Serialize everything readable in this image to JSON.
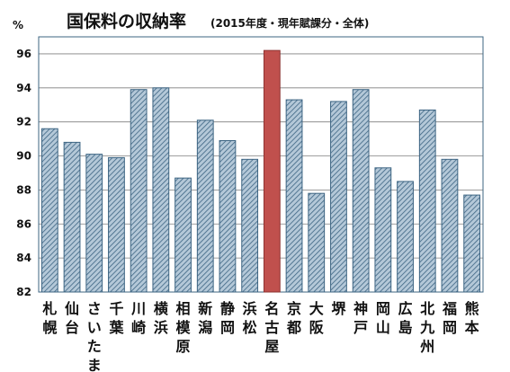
{
  "chart_data": {
    "type": "bar",
    "title": "国保料の収納率",
    "subtitle": "(2015年度・現年賦課分・全体)",
    "ylabel": "%",
    "ylim": [
      82,
      97
    ],
    "yticks": [
      82,
      84,
      86,
      88,
      90,
      92,
      94,
      96
    ],
    "grid": true,
    "categories": [
      "札幌",
      "仙台",
      "さいたま",
      "千葉",
      "川崎",
      "横浜",
      "相模原",
      "新潟",
      "静岡",
      "浜松",
      "名古屋",
      "京都",
      "大阪",
      "堺",
      "神戸",
      "岡山",
      "広島",
      "北九州",
      "福岡",
      "熊本"
    ],
    "values": [
      91.6,
      90.8,
      90.1,
      89.9,
      93.9,
      94.0,
      88.7,
      92.1,
      90.9,
      89.8,
      96.2,
      93.3,
      87.8,
      93.2,
      93.9,
      89.3,
      88.5,
      92.7,
      89.8,
      87.7
    ],
    "highlight_category": "名古屋",
    "colors": {
      "bar_fill": "#b4c8d8",
      "bar_hatch": "#3c6482",
      "bar_stroke": "#3c6482",
      "highlight_fill": "#c0504d",
      "highlight_stroke": "#8e3432",
      "plot_frame": "#3c6482",
      "grid": "#7f7f7f"
    }
  }
}
